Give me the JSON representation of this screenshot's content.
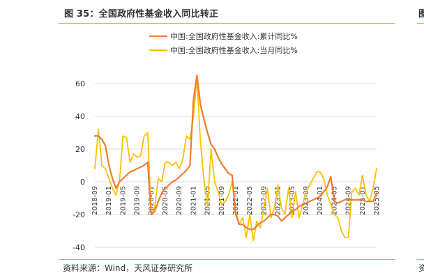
{
  "figure": {
    "title": "图 35：全国政府性基金收入同比转正",
    "right_title_fragment": "图",
    "source": "资料来源：Wind，天风证券研究所",
    "right_source_fragment": "资"
  },
  "chart_data": {
    "type": "line",
    "title": "图 35：全国政府性基金收入同比转正",
    "xlabel": "",
    "ylabel": "",
    "ylim": [
      -40,
      60
    ],
    "y_ticks": [
      -40,
      -20,
      0,
      20,
      40,
      60
    ],
    "x_tick_labels": [
      "2018-09",
      "2019-01",
      "2019-05",
      "2019-09",
      "2020-01",
      "2020-05",
      "2020-09",
      "2021-01",
      "2021-05",
      "2021-09",
      "2022-01",
      "2022-05",
      "2022-09",
      "2023-01",
      "2023-05",
      "2023-09",
      "2024-01",
      "2024-05",
      "2024-09",
      "2025-01",
      "2025-05"
    ],
    "grid": true,
    "legend_position": "top-center",
    "series": [
      {
        "name": "中国:全国政府性基金收入:累计同比%",
        "color": "#ed7d31",
        "points": [
          [
            "2018-09",
            28
          ],
          [
            "2018-10",
            28
          ],
          [
            "2018-11",
            26
          ],
          [
            "2018-12",
            22
          ],
          [
            "2019-01",
            10
          ],
          [
            "2019-02",
            2
          ],
          [
            "2019-03",
            -4
          ],
          [
            "2019-04",
            0
          ],
          [
            "2019-05",
            2
          ],
          [
            "2019-06",
            4
          ],
          [
            "2019-07",
            6
          ],
          [
            "2019-08",
            7
          ],
          [
            "2019-09",
            8
          ],
          [
            "2019-10",
            9
          ],
          [
            "2019-11",
            10
          ],
          [
            "2019-12",
            12
          ],
          [
            "2020-01",
            -20
          ],
          [
            "2020-02",
            -18
          ],
          [
            "2020-03",
            -12
          ],
          [
            "2020-04",
            -7
          ],
          [
            "2020-05",
            -4
          ],
          [
            "2020-06",
            -2
          ],
          [
            "2020-07",
            0
          ],
          [
            "2020-08",
            1
          ],
          [
            "2020-09",
            3
          ],
          [
            "2020-10",
            5
          ],
          [
            "2020-11",
            7
          ],
          [
            "2020-12",
            10
          ],
          [
            "2021-01",
            50
          ],
          [
            "2021-02",
            65
          ],
          [
            "2021-03",
            47
          ],
          [
            "2021-04",
            38
          ],
          [
            "2021-05",
            30
          ],
          [
            "2021-06",
            23
          ],
          [
            "2021-07",
            20
          ],
          [
            "2021-08",
            15
          ],
          [
            "2021-09",
            11
          ],
          [
            "2021-10",
            8
          ],
          [
            "2021-11",
            5
          ],
          [
            "2021-12",
            4
          ],
          [
            "2022-01",
            -20
          ],
          [
            "2022-02",
            -26
          ],
          [
            "2022-03",
            -26
          ],
          [
            "2022-04",
            -28
          ],
          [
            "2022-05",
            -29
          ],
          [
            "2022-06",
            -29
          ],
          [
            "2022-07",
            -27
          ],
          [
            "2022-08",
            -25
          ],
          [
            "2022-09",
            -24
          ],
          [
            "2022-10",
            -22
          ],
          [
            "2022-11",
            -20
          ],
          [
            "2022-12",
            -20
          ],
          [
            "2023-01",
            -21
          ],
          [
            "2023-02",
            -24
          ],
          [
            "2023-03",
            -22
          ],
          [
            "2023-04",
            -20
          ],
          [
            "2023-05",
            -18
          ],
          [
            "2023-06",
            -17
          ],
          [
            "2023-07",
            -15
          ],
          [
            "2023-08",
            -14
          ],
          [
            "2023-09",
            -13
          ],
          [
            "2023-10",
            -12
          ],
          [
            "2023-11",
            -11
          ],
          [
            "2023-12",
            -10
          ],
          [
            "2024-01",
            -9
          ],
          [
            "2024-02",
            -6
          ],
          [
            "2024-03",
            -3
          ],
          [
            "2024-04",
            3
          ],
          [
            "2024-05",
            -12
          ],
          [
            "2024-06",
            -13
          ],
          [
            "2024-07",
            -12
          ],
          [
            "2024-08",
            -11
          ],
          [
            "2024-09",
            -11
          ],
          [
            "2024-10",
            -11
          ],
          [
            "2024-11",
            -11
          ],
          [
            "2024-12",
            -11
          ],
          [
            "2025-01",
            -11
          ],
          [
            "2025-02",
            -12
          ],
          [
            "2025-03",
            -12
          ],
          [
            "2025-04",
            -12
          ],
          [
            "2025-05",
            -7
          ]
        ]
      },
      {
        "name": "中国:全国政府性基金收入:当月同比%",
        "color": "#ffc000",
        "points": [
          [
            "2018-09",
            8
          ],
          [
            "2018-10",
            32
          ],
          [
            "2018-11",
            10
          ],
          [
            "2018-12",
            8
          ],
          [
            "2019-01",
            2
          ],
          [
            "2019-02",
            -4
          ],
          [
            "2019-03",
            -8
          ],
          [
            "2019-04",
            0
          ],
          [
            "2019-05",
            28
          ],
          [
            "2019-06",
            27
          ],
          [
            "2019-07",
            12
          ],
          [
            "2019-08",
            17
          ],
          [
            "2019-09",
            15
          ],
          [
            "2019-10",
            16
          ],
          [
            "2019-11",
            28
          ],
          [
            "2019-12",
            30
          ],
          [
            "2020-01",
            -20
          ],
          [
            "2020-02",
            -16
          ],
          [
            "2020-03",
            2
          ],
          [
            "2020-04",
            0
          ],
          [
            "2020-05",
            12
          ],
          [
            "2020-06",
            12
          ],
          [
            "2020-07",
            10
          ],
          [
            "2020-08",
            12
          ],
          [
            "2020-09",
            8
          ],
          [
            "2020-10",
            14
          ],
          [
            "2020-11",
            28
          ],
          [
            "2020-12",
            26
          ],
          [
            "2021-01",
            40
          ],
          [
            "2021-02",
            63
          ],
          [
            "2021-03",
            24
          ],
          [
            "2021-04",
            0
          ],
          [
            "2021-05",
            -15
          ],
          [
            "2021-06",
            20
          ],
          [
            "2021-07",
            0
          ],
          [
            "2021-08",
            -6
          ],
          [
            "2021-09",
            -14
          ],
          [
            "2021-10",
            -12
          ],
          [
            "2021-11",
            -8
          ],
          [
            "2021-12",
            0
          ],
          [
            "2022-01",
            -18
          ],
          [
            "2022-02",
            -26
          ],
          [
            "2022-03",
            -22
          ],
          [
            "2022-04",
            -34
          ],
          [
            "2022-05",
            -20
          ],
          [
            "2022-06",
            -36
          ],
          [
            "2022-07",
            -24
          ],
          [
            "2022-08",
            -28
          ],
          [
            "2022-09",
            -16
          ],
          [
            "2022-10",
            -4
          ],
          [
            "2022-11",
            -22
          ],
          [
            "2022-12",
            -16
          ],
          [
            "2023-01",
            -2
          ],
          [
            "2023-02",
            -16
          ],
          [
            "2023-03",
            -20
          ],
          [
            "2023-04",
            -4
          ],
          [
            "2023-05",
            -22
          ],
          [
            "2023-06",
            -6
          ],
          [
            "2023-07",
            -22
          ],
          [
            "2023-08",
            -14
          ],
          [
            "2023-09",
            -6
          ],
          [
            "2023-10",
            -2
          ],
          [
            "2023-11",
            2
          ],
          [
            "2023-12",
            6
          ],
          [
            "2024-01",
            6
          ],
          [
            "2024-02",
            2
          ],
          [
            "2024-03",
            -8
          ],
          [
            "2024-04",
            -14
          ],
          [
            "2024-05",
            -20
          ],
          [
            "2024-06",
            -22
          ],
          [
            "2024-07",
            -30
          ],
          [
            "2024-08",
            -34
          ],
          [
            "2024-09",
            -34
          ],
          [
            "2024-10",
            -6
          ],
          [
            "2024-11",
            -4
          ],
          [
            "2024-12",
            -8
          ],
          [
            "2025-01",
            4
          ],
          [
            "2025-02",
            -8
          ],
          [
            "2025-03",
            -12
          ],
          [
            "2025-04",
            -4
          ],
          [
            "2025-05",
            8
          ]
        ]
      }
    ]
  }
}
